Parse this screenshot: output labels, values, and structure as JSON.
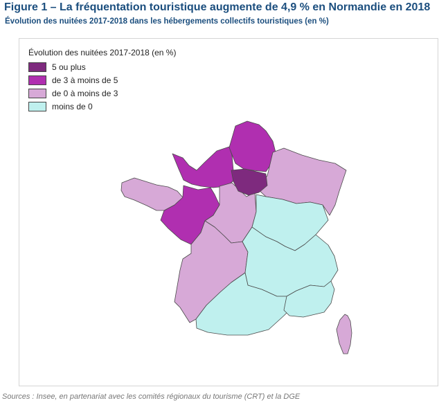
{
  "title": "Figure 1 – La fréquentation touristique augmente de 4,9 % en Normandie en 2018",
  "subtitle": "Évolution des nuitées 2017-2018 dans les hébergements collectifs touristiques (en %)",
  "legend": {
    "title": "Évolution des nuitées 2017-2018 (en %)",
    "items": [
      {
        "label": "5 ou plus",
        "color": "#7e2a7e"
      },
      {
        "label": "de 3 à moins de 5",
        "color": "#b02fb0"
      },
      {
        "label": "de 0 à moins de 3",
        "color": "#d7a9d7"
      },
      {
        "label": "moins de 0",
        "color": "#bff0ee"
      }
    ]
  },
  "regions": [
    {
      "class": "de 3 à moins de 5",
      "color": "#b02fb0"
    },
    {
      "class": "de 3 à moins de 5",
      "color": "#b02fb0"
    },
    {
      "class": "de 0 à moins de 3",
      "color": "#d7a9d7"
    },
    {
      "class": "de 0 à moins de 3",
      "color": "#d7a9d7"
    },
    {
      "class": "de 3 à moins de 5",
      "color": "#b02fb0"
    },
    {
      "class": "de 0 à moins de 3",
      "color": "#d7a9d7"
    },
    {
      "class": "5 ou plus",
      "color": "#7e2a7e"
    },
    {
      "class": "moins de 0",
      "color": "#bff0ee"
    },
    {
      "class": "de 0 à moins de 3",
      "color": "#d7a9d7"
    },
    {
      "class": "moins de 0",
      "color": "#bff0ee"
    },
    {
      "class": "moins de 0",
      "color": "#bff0ee"
    },
    {
      "class": "moins de 0",
      "color": "#bff0ee"
    },
    {
      "class": "de 0 à moins de 3",
      "color": "#d7a9d7"
    }
  ],
  "source": "Sources : Insee, en partenariat avec les comités régionaux du tourisme (CRT) et la DGE"
}
